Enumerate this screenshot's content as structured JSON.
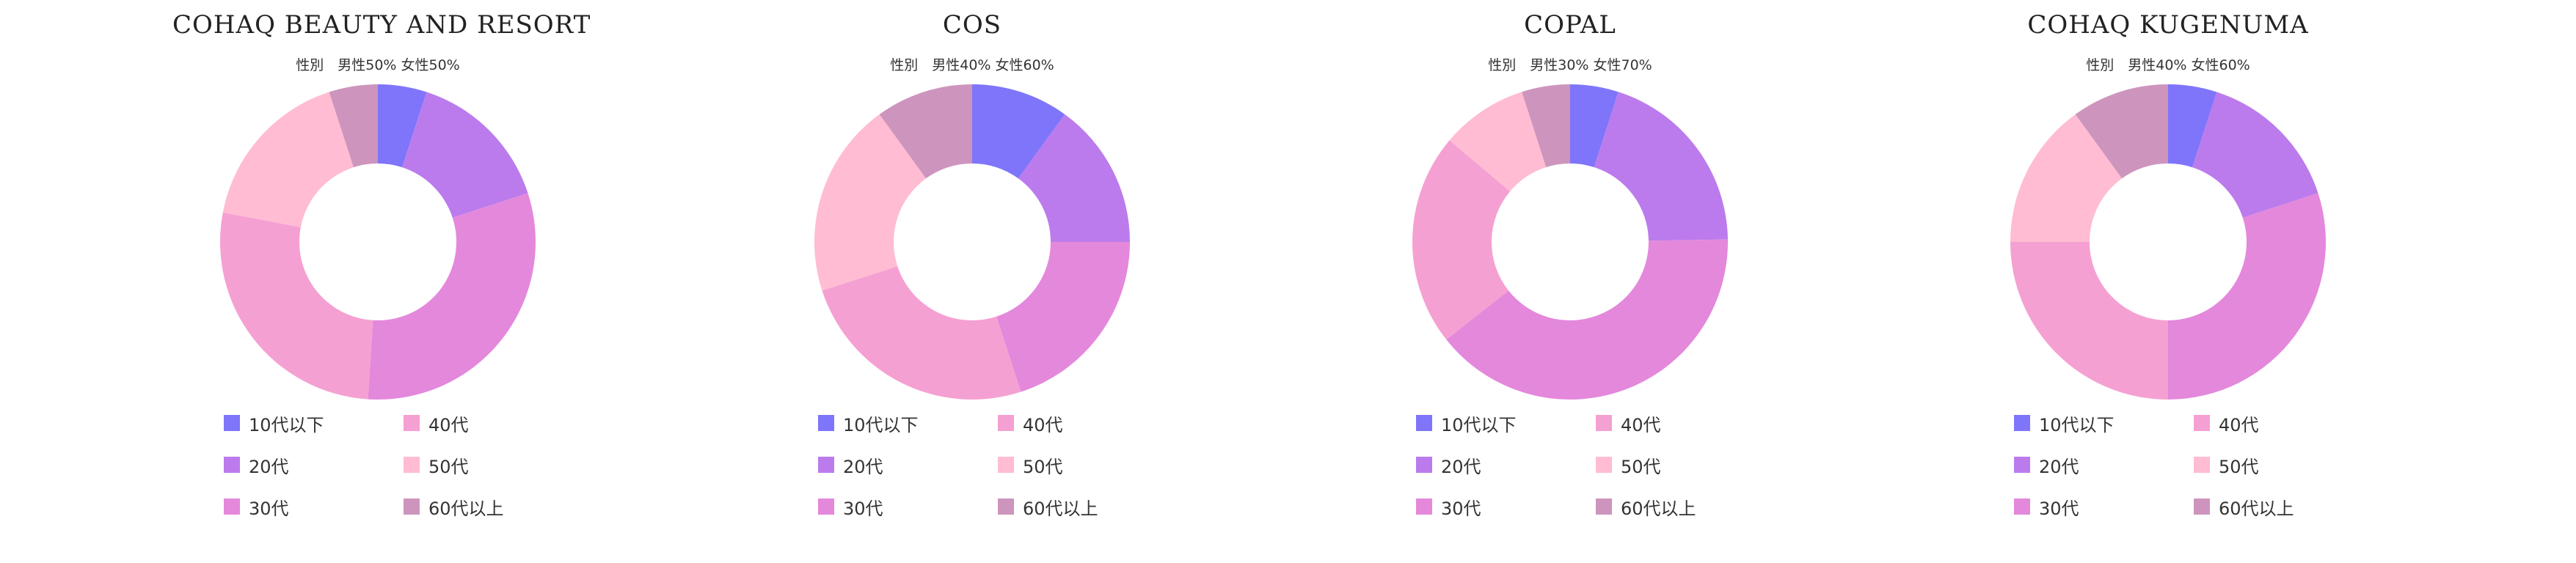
{
  "chart_data": [
    {
      "type": "pie",
      "title": "COHAQ BEAUTY AND RESORT",
      "subtitle": "性別　男性50% 女性50%",
      "categories": [
        "10代以下",
        "20代",
        "30代",
        "40代",
        "50代",
        "60代以上"
      ],
      "values": [
        5,
        15,
        31,
        27,
        17,
        5
      ],
      "colors": [
        "#7F75FA",
        "#BB7BEC",
        "#E488DC",
        "#F5A0D2",
        "#FFBCD2",
        "#CD95BD"
      ],
      "legend": "bottom"
    },
    {
      "type": "pie",
      "title": "COS",
      "subtitle": "性別　男性40% 女性60%",
      "categories": [
        "10代以下",
        "20代",
        "30代",
        "40代",
        "50代",
        "60代以上"
      ],
      "values": [
        10,
        15,
        20,
        25,
        20,
        10
      ],
      "colors": [
        "#7F75FA",
        "#BB7BEC",
        "#E488DC",
        "#F5A0D2",
        "#FFBCD2",
        "#CD95BD"
      ],
      "legend": "bottom"
    },
    {
      "type": "pie",
      "title": "COPAL",
      "subtitle": "性別　男性30% 女性70%",
      "categories": [
        "10代以下",
        "20代",
        "30代",
        "40代",
        "50代",
        "60代以上"
      ],
      "values": [
        5,
        20,
        40,
        22,
        9,
        5
      ],
      "colors": [
        "#7F75FA",
        "#BB7BEC",
        "#E488DC",
        "#F5A0D2",
        "#FFBCD2",
        "#CD95BD"
      ],
      "legend": "bottom"
    },
    {
      "type": "pie",
      "title": "COHAQ KUGENUMA",
      "subtitle": "性別　男性40% 女性60%",
      "categories": [
        "10代以下",
        "20代",
        "30代",
        "40代",
        "50代",
        "60代以上"
      ],
      "values": [
        5,
        15,
        30,
        25,
        15,
        10
      ],
      "colors": [
        "#7F75FA",
        "#BB7BEC",
        "#E488DC",
        "#F5A0D2",
        "#FFBCD2",
        "#CD95BD"
      ],
      "legend": "bottom"
    }
  ]
}
